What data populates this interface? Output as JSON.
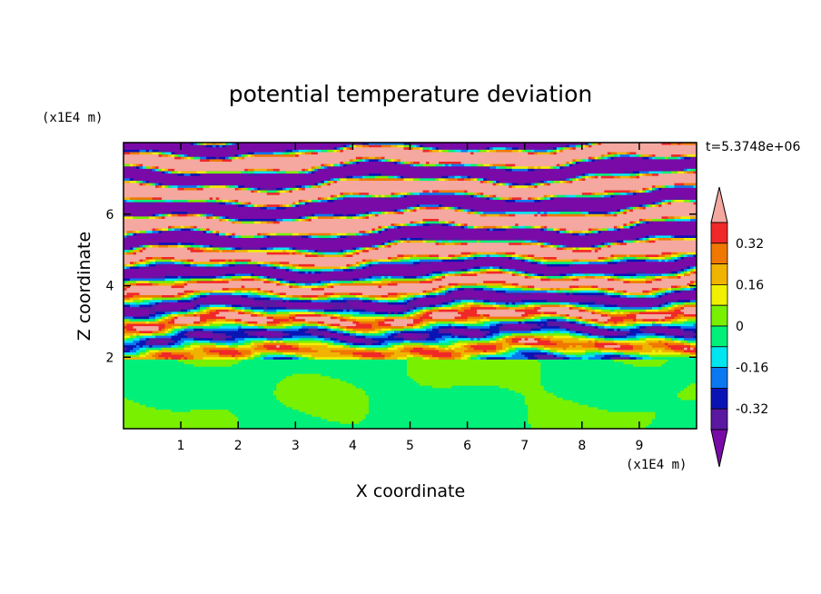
{
  "chart_data": {
    "type": "heatmap",
    "title": "potential temperature deviation",
    "xlabel": "X coordinate",
    "ylabel": "Z coordinate",
    "x_unit": "(x1E4 m)",
    "z_unit": "(x1E4 m)",
    "time_label": "t=5.3748e+06",
    "xlim": [
      0,
      10
    ],
    "ylim": [
      0,
      8
    ],
    "x_ticks": [
      "1",
      "2",
      "3",
      "4",
      "5",
      "6",
      "7",
      "8",
      "9"
    ],
    "y_ticks": [
      "2",
      "4",
      "6"
    ],
    "colorbar": {
      "tick_labels": [
        "0.32",
        "0.16",
        "0",
        "-0.16",
        "-0.32"
      ],
      "tick_values": [
        0.32,
        0.16,
        0,
        -0.16,
        -0.32
      ],
      "range": [
        -0.4,
        0.4
      ],
      "levels": [
        {
          "color": "#7a0aa8"
        },
        {
          "color": "#5a18a0"
        },
        {
          "color": "#0a14b4"
        },
        {
          "color": "#0a78f0"
        },
        {
          "color": "#00e6f0"
        },
        {
          "color": "#00f07a"
        },
        {
          "color": "#78f000"
        },
        {
          "color": "#f0f000"
        },
        {
          "color": "#f0b400"
        },
        {
          "color": "#f07800"
        },
        {
          "color": "#f02828"
        },
        {
          "color": "#f4a8a0"
        }
      ],
      "extends": "both"
    },
    "field_description_colors": {
      "lower_layer_dominant": [
        "#00f07a",
        "#78f000"
      ],
      "upper_layer_dominant": [
        "#f4a8a0",
        "#7a0aa8"
      ]
    }
  }
}
